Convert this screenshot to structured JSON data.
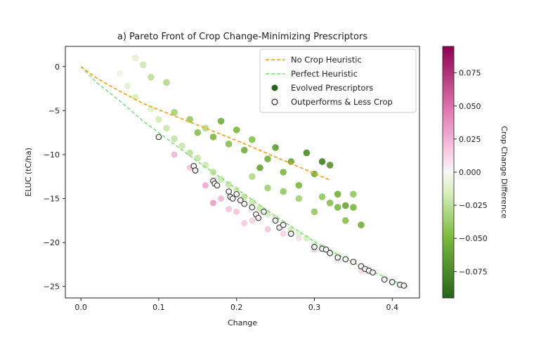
{
  "chart_data": {
    "type": "scatter",
    "title": "a) Pareto Front of Crop Change-Minimizing Prescriptors",
    "xlabel": "Change",
    "ylabel": "ELUC (tC/ha)",
    "xlim": [
      -0.02,
      0.435
    ],
    "ylim": [
      -26.3,
      2.3
    ],
    "xticks": [
      "0.0",
      "0.1",
      "0.2",
      "0.3",
      "0.4"
    ],
    "yticks": [
      "0",
      "−5",
      "−10",
      "−15",
      "−20",
      "−25"
    ],
    "grid": false,
    "legend_position": "top-right",
    "legend": {
      "no_crop": "No Crop Heuristic",
      "perfect": "Perfect Heuristic",
      "evolved": "Evolved Prescriptors",
      "outperforms": "Outperforms & Less Crop"
    },
    "colors": {
      "no_crop_line": "#f5a623",
      "perfect_line": "#8de08d",
      "dark_green": "#276419",
      "magenta": "#8e0152",
      "outline": "#333333"
    },
    "colorbar": {
      "label": "Crop Change Difference",
      "range": [
        -0.095,
        0.095
      ],
      "ticks": [
        "0.075",
        "0.050",
        "0.025",
        "0.000",
        "−0.025",
        "−0.050",
        "−0.075"
      ]
    },
    "no_crop_heuristic": {
      "x": [
        0.0,
        0.02,
        0.05,
        0.08,
        0.12,
        0.16,
        0.2,
        0.24,
        0.28,
        0.32
      ],
      "y": [
        0.0,
        -1.3,
        -2.8,
        -4.2,
        -5.6,
        -7.0,
        -8.4,
        -9.9,
        -11.4,
        -12.9
      ]
    },
    "perfect_heuristic": {
      "x": [
        0.0,
        0.02,
        0.05,
        0.08,
        0.1,
        0.15,
        0.2,
        0.25,
        0.3,
        0.35,
        0.4,
        0.42
      ],
      "y": [
        0.0,
        -1.8,
        -3.9,
        -6.2,
        -7.5,
        -10.8,
        -13.9,
        -17.0,
        -19.9,
        -22.3,
        -24.3,
        -25.0
      ]
    },
    "evolved_prescriptors": {
      "x": [
        0.07,
        0.08,
        0.09,
        0.11,
        0.12,
        0.14,
        0.15,
        0.16,
        0.17,
        0.18,
        0.19,
        0.2,
        0.21,
        0.22,
        0.23,
        0.24,
        0.25,
        0.26,
        0.27,
        0.28,
        0.29,
        0.3,
        0.31,
        0.32,
        0.33,
        0.34,
        0.35,
        0.36,
        0.05,
        0.06,
        0.07,
        0.09,
        0.1,
        0.11,
        0.12,
        0.13,
        0.14,
        0.15,
        0.16,
        0.17,
        0.18,
        0.19,
        0.2,
        0.21,
        0.22,
        0.23,
        0.24,
        0.25,
        0.26,
        0.27,
        0.28,
        0.29,
        0.3,
        0.31,
        0.32,
        0.33,
        0.34,
        0.35,
        0.36,
        0.37,
        0.38,
        0.39,
        0.4,
        0.405,
        0.22,
        0.24,
        0.26,
        0.28,
        0.3,
        0.32,
        0.34,
        0.31,
        0.33,
        0.35
      ],
      "y": [
        1.0,
        0.2,
        -1.2,
        -1.8,
        -5.2,
        -6.0,
        -7.5,
        -7.0,
        -8.0,
        -6.2,
        -8.8,
        -7.2,
        -9.5,
        -8.3,
        -11.5,
        -10.5,
        -9.2,
        -12.0,
        -10.8,
        -13.5,
        -9.8,
        -12.2,
        -10.8,
        -11.2,
        -14.5,
        -15.8,
        -16.0,
        -18.0,
        -0.8,
        -2.2,
        -3.5,
        -4.8,
        -6.0,
        -7.0,
        -8.2,
        -9.0,
        -9.8,
        -10.4,
        -11.2,
        -12.0,
        -12.8,
        -13.4,
        -14.0,
        -14.8,
        -15.4,
        -16.1,
        -16.7,
        -17.3,
        -17.9,
        -18.5,
        -19.0,
        -19.5,
        -20.0,
        -20.5,
        -21.0,
        -21.4,
        -21.8,
        -22.2,
        -22.6,
        -23.0,
        -23.4,
        -23.8,
        -24.3,
        -24.7,
        -12.5,
        -13.8,
        -14.2,
        -15.0,
        -16.5,
        -15.5,
        -17.5,
        -14.8,
        -16.0,
        -14.5
      ],
      "crop_change_difference": [
        -0.01,
        -0.02,
        -0.025,
        -0.03,
        -0.035,
        -0.04,
        -0.045,
        -0.03,
        -0.05,
        -0.055,
        -0.045,
        -0.05,
        -0.055,
        -0.045,
        -0.06,
        -0.055,
        -0.065,
        -0.05,
        -0.06,
        -0.05,
        -0.075,
        -0.055,
        -0.08,
        -0.07,
        -0.055,
        -0.06,
        -0.05,
        -0.055,
        -0.005,
        -0.01,
        -0.015,
        -0.012,
        -0.018,
        -0.02,
        -0.022,
        -0.02,
        -0.025,
        -0.022,
        -0.02,
        -0.025,
        -0.02,
        -0.022,
        -0.02,
        -0.025,
        -0.02,
        -0.022,
        -0.018,
        -0.02,
        -0.015,
        -0.018,
        -0.012,
        -0.015,
        -0.01,
        -0.012,
        -0.008,
        -0.01,
        -0.006,
        -0.008,
        -0.005,
        -0.006,
        -0.004,
        -0.003,
        -0.002,
        -0.001,
        -0.03,
        -0.035,
        -0.04,
        -0.035,
        -0.04,
        -0.045,
        -0.045,
        -0.04,
        -0.05,
        -0.04
      ]
    },
    "pink_prescriptors": {
      "x": [
        0.12,
        0.14,
        0.16,
        0.18,
        0.2,
        0.22,
        0.24,
        0.26,
        0.28,
        0.3,
        0.33,
        0.36,
        0.39,
        0.17,
        0.19,
        0.21
      ],
      "y": [
        -10.0,
        -11.5,
        -13.5,
        -15.0,
        -16.5,
        -17.5,
        -18.5,
        -19.0,
        -19.5,
        -20.8,
        -22.0,
        -23.2,
        -24.2,
        -15.5,
        -16.2,
        -17.8
      ],
      "crop_change_difference": [
        0.025,
        0.02,
        0.03,
        0.025,
        0.02,
        0.015,
        0.02,
        0.015,
        0.01,
        0.015,
        0.01,
        0.012,
        0.008,
        0.035,
        0.02,
        0.018
      ]
    },
    "outperforms_less_crop": {
      "x": [
        0.1,
        0.145,
        0.147,
        0.17,
        0.172,
        0.175,
        0.19,
        0.192,
        0.195,
        0.2,
        0.205,
        0.21,
        0.22,
        0.225,
        0.228,
        0.235,
        0.25,
        0.255,
        0.26,
        0.27,
        0.3,
        0.31,
        0.315,
        0.32,
        0.33,
        0.34,
        0.35,
        0.36,
        0.365,
        0.37,
        0.375,
        0.39,
        0.4,
        0.41,
        0.415
      ],
      "y": [
        -8.0,
        -11.3,
        -11.8,
        -13.0,
        -13.3,
        -13.5,
        -14.2,
        -14.8,
        -15.0,
        -14.5,
        -15.2,
        -15.6,
        -16.0,
        -16.8,
        -17.2,
        -16.5,
        -17.5,
        -18.3,
        -18.0,
        -19.0,
        -20.5,
        -20.7,
        -20.8,
        -21.2,
        -21.7,
        -21.9,
        -22.2,
        -22.7,
        -23.0,
        -23.2,
        -23.4,
        -24.2,
        -24.5,
        -24.8,
        -24.9
      ]
    }
  }
}
